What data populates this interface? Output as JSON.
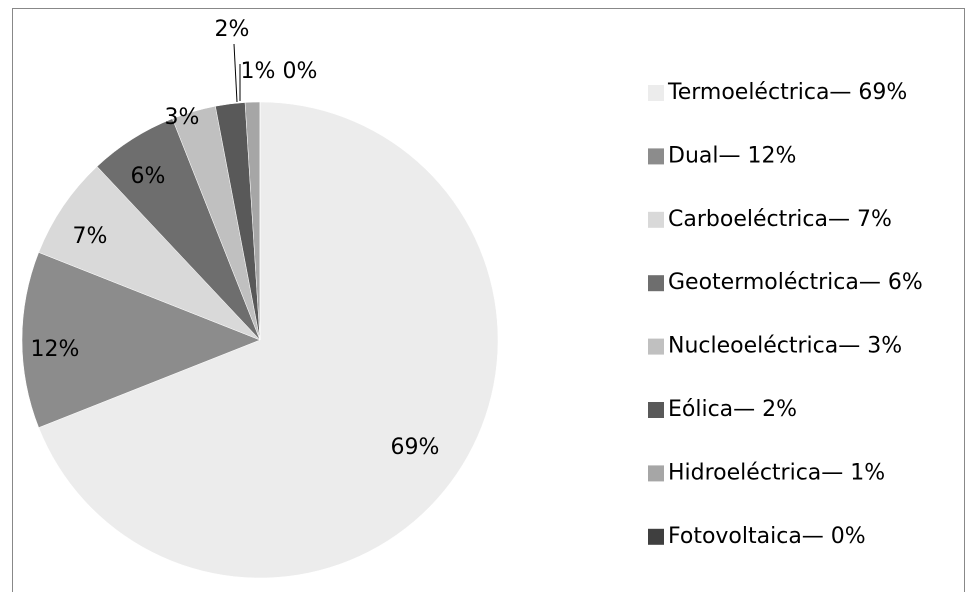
{
  "chart_data": {
    "type": "pie",
    "categories": [
      "Termoeléctrica— 69%",
      "Dual— 12%",
      "Carboeléctrica— 7%",
      "Geotermoléctrica— 6%",
      "Nucleoeléctrica— 3%",
      "Eólica— 2%",
      "Hidroeléctrica— 1%",
      "Fotovoltaica— 0%"
    ],
    "values": [
      69,
      12,
      7,
      6,
      3,
      2,
      1,
      0
    ],
    "value_labels": [
      "69%",
      "12%",
      "7%",
      "6%",
      "3%",
      "2%",
      "1%",
      "0%"
    ],
    "colors": [
      "#ececec",
      "#8c8c8c",
      "#d9d9d9",
      "#6e6e6e",
      "#c0c0c0",
      "#595959",
      "#a6a6a6",
      "#3f3f3f"
    ],
    "legend": "right"
  }
}
